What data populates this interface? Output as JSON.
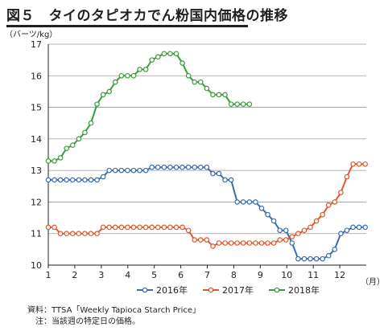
{
  "figure": {
    "title": "図５　タイのタピオカでん粉国内価格の推移",
    "y_unit": "（バーツ/kg）",
    "x_unit": "（月）",
    "source_label": "資料：",
    "source_text": "TTSA「Weekly Tapioca Starch Price」",
    "note_label": "注：",
    "note_text": "当該週の特定日の価格。"
  },
  "chart_data": {
    "type": "line",
    "title": "タイのタピオカでん粉国内価格の推移",
    "xlabel": "（月）",
    "ylabel": "（バーツ/kg）",
    "xlim": [
      1,
      13
    ],
    "ylim": [
      10,
      17
    ],
    "x_ticks": [
      1,
      2,
      3,
      4,
      5,
      6,
      7,
      8,
      9,
      10,
      11,
      12
    ],
    "y_ticks": [
      10,
      11,
      12,
      13,
      14,
      15,
      16,
      17
    ],
    "grid": true,
    "legend_position": "bottom",
    "series": [
      {
        "name": "2016年",
        "color": "#3a6cb0",
        "x": [
          1.0,
          1.23,
          1.46,
          1.69,
          1.92,
          2.15,
          2.38,
          2.61,
          2.84,
          3.07,
          3.3,
          3.53,
          3.76,
          3.99,
          4.22,
          4.45,
          4.68,
          4.91,
          5.14,
          5.37,
          5.6,
          5.83,
          6.06,
          6.29,
          6.52,
          6.75,
          6.98,
          7.21,
          7.44,
          7.67,
          7.9,
          8.13,
          8.36,
          8.59,
          8.82,
          9.05,
          9.28,
          9.51,
          9.74,
          9.97,
          10.2,
          10.43,
          10.66,
          10.89,
          11.12,
          11.35,
          11.58,
          11.81,
          12.04,
          12.27,
          12.5,
          12.73,
          12.96
        ],
        "y": [
          12.7,
          12.7,
          12.7,
          12.7,
          12.7,
          12.7,
          12.7,
          12.7,
          12.7,
          12.8,
          13.0,
          13.0,
          13.0,
          13.0,
          13.0,
          13.0,
          13.0,
          13.1,
          13.1,
          13.1,
          13.1,
          13.1,
          13.1,
          13.1,
          13.1,
          13.1,
          13.1,
          12.9,
          12.9,
          12.7,
          12.7,
          12.0,
          12.0,
          12.0,
          12.0,
          11.8,
          11.6,
          11.4,
          11.1,
          11.1,
          10.7,
          10.2,
          10.2,
          10.2,
          10.2,
          10.2,
          10.3,
          10.5,
          11.0,
          11.1,
          11.2,
          11.2,
          11.2
        ]
      },
      {
        "name": "2017年",
        "color": "#e0592a",
        "x": [
          1.0,
          1.23,
          1.46,
          1.69,
          1.92,
          2.15,
          2.38,
          2.61,
          2.84,
          3.07,
          3.3,
          3.53,
          3.76,
          3.99,
          4.22,
          4.45,
          4.68,
          4.91,
          5.14,
          5.37,
          5.6,
          5.83,
          6.06,
          6.29,
          6.52,
          6.75,
          6.98,
          7.21,
          7.44,
          7.67,
          7.9,
          8.13,
          8.36,
          8.59,
          8.82,
          9.05,
          9.28,
          9.51,
          9.74,
          9.97,
          10.2,
          10.43,
          10.66,
          10.89,
          11.12,
          11.35,
          11.58,
          11.81,
          12.04,
          12.27,
          12.5,
          12.73,
          12.96
        ],
        "y": [
          11.2,
          11.2,
          11.0,
          11.0,
          11.0,
          11.0,
          11.0,
          11.0,
          11.0,
          11.2,
          11.2,
          11.2,
          11.2,
          11.2,
          11.2,
          11.2,
          11.2,
          11.2,
          11.2,
          11.2,
          11.2,
          11.2,
          11.2,
          11.1,
          10.8,
          10.8,
          10.8,
          10.6,
          10.7,
          10.7,
          10.7,
          10.7,
          10.7,
          10.7,
          10.7,
          10.7,
          10.7,
          10.7,
          10.8,
          10.8,
          10.9,
          11.0,
          11.1,
          11.2,
          11.4,
          11.6,
          11.9,
          12.0,
          12.3,
          12.8,
          13.2,
          13.2,
          13.2
        ]
      },
      {
        "name": "2018年",
        "color": "#3a9c37",
        "x": [
          1.0,
          1.23,
          1.46,
          1.69,
          1.92,
          2.15,
          2.38,
          2.61,
          2.84,
          3.07,
          3.3,
          3.53,
          3.76,
          3.99,
          4.22,
          4.45,
          4.68,
          4.91,
          5.14,
          5.37,
          5.6,
          5.83,
          6.06,
          6.29,
          6.52,
          6.75,
          6.98,
          7.21,
          7.44,
          7.67,
          7.9,
          8.13,
          8.36,
          8.59
        ],
        "y": [
          13.3,
          13.3,
          13.4,
          13.7,
          13.8,
          14.0,
          14.2,
          14.5,
          15.1,
          15.4,
          15.5,
          15.8,
          16.0,
          16.0,
          16.0,
          16.2,
          16.2,
          16.5,
          16.6,
          16.7,
          16.7,
          16.7,
          16.4,
          16.0,
          15.8,
          15.8,
          15.6,
          15.4,
          15.4,
          15.4,
          15.1,
          15.1,
          15.1,
          15.1
        ]
      }
    ]
  }
}
